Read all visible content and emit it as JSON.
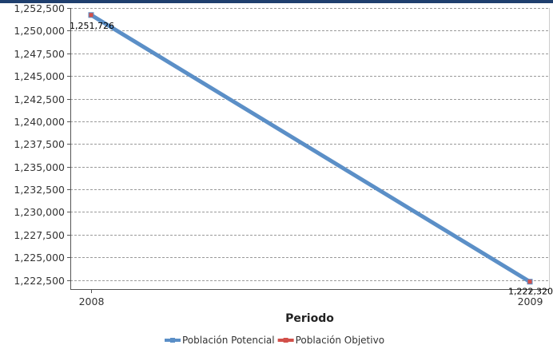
{
  "chart_data": {
    "type": "line",
    "x": [
      "2008",
      "2009"
    ],
    "xlabel": "Periodo",
    "ylabel": "",
    "ylim": [
      1221500,
      1252500
    ],
    "yticks": [
      1222500,
      1225000,
      1227500,
      1230000,
      1232500,
      1235000,
      1237500,
      1240000,
      1242500,
      1245000,
      1247500,
      1250000,
      1252500
    ],
    "ytick_labels": [
      "1,222,500",
      "1,225,000",
      "1,227,500",
      "1,230,000",
      "1,232,500",
      "1,235,000",
      "1,237,500",
      "1,240,000",
      "1,242,500",
      "1,245,000",
      "1,247,500",
      "1,250,000",
      "1,252,500"
    ],
    "grid": true,
    "legend_position": "bottom",
    "series": [
      {
        "name": "Población Potencial",
        "values": [
          1251726,
          1222320
        ],
        "color": "#5b8fc7",
        "data_labels": [
          "1,251,726",
          "1,222,320"
        ]
      },
      {
        "name": "Población Objetivo",
        "values": [
          1251726,
          1222320
        ],
        "color": "#d2504a",
        "data_labels": []
      }
    ]
  }
}
